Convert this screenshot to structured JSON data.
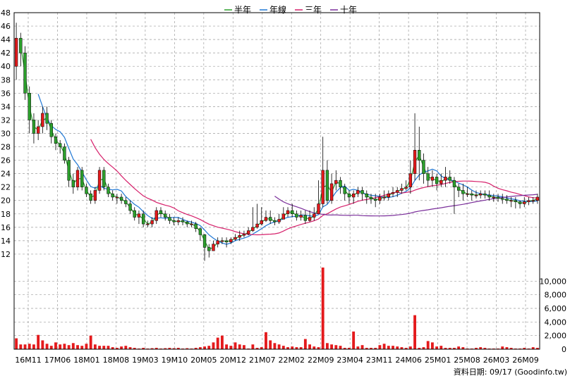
{
  "chart_data": {
    "type": "candlestick",
    "legend": [
      {
        "name": "半年",
        "color": "#2ca02c"
      },
      {
        "name": "年線",
        "color": "#1f77d4"
      },
      {
        "name": "三年",
        "color": "#d6206b"
      },
      {
        "name": "十年",
        "color": "#7a2e9a"
      }
    ],
    "colors": {
      "up": "#e41a1c",
      "down": "#2ca02c",
      "volume": "#e41a1c",
      "grid": "#9e9e9e"
    },
    "price_axis": {
      "min": 10,
      "max": 48,
      "ticks": [
        12,
        14,
        16,
        18,
        20,
        22,
        24,
        26,
        28,
        30,
        32,
        34,
        36,
        38,
        40,
        42,
        44,
        46,
        48
      ]
    },
    "volume_axis": {
      "min": 0,
      "max": 12000,
      "ticks": [
        0,
        2000,
        4000,
        6000,
        8000,
        10000
      ],
      "tick_labels": [
        "0",
        "2,000",
        "4,000",
        "6,000",
        "8,000",
        "10,000"
      ]
    },
    "x_tick_labels": [
      "16M11",
      "17M06",
      "18M01",
      "18M08",
      "19M03",
      "19M10",
      "20M05",
      "20M12",
      "21M07",
      "22M02",
      "22M09",
      "23M04",
      "23M11",
      "24M06",
      "25M01",
      "25M08",
      "26M03",
      "26M09"
    ],
    "n_periods": 120,
    "close": [
      44.2,
      42.0,
      36.0,
      32.0,
      30.0,
      31.0,
      33.0,
      31.5,
      29.5,
      28.5,
      28.0,
      26.0,
      23.0,
      22.0,
      24.5,
      22.0,
      21.0,
      20.0,
      21.5,
      24.5,
      22.0,
      21.0,
      20.5,
      20.5,
      20.0,
      19.5,
      18.5,
      17.5,
      18.0,
      16.5,
      16.5,
      17.0,
      18.5,
      18.0,
      17.5,
      17.0,
      16.8,
      17.0,
      16.8,
      16.5,
      16.5,
      15.8,
      14.9,
      13.0,
      12.5,
      13.5,
      14.0,
      14.0,
      13.8,
      14.2,
      14.5,
      14.8,
      15.0,
      15.5,
      16.0,
      16.5,
      17.0,
      17.5,
      17.0,
      16.8,
      17.2,
      18.0,
      18.5,
      18.0,
      17.5,
      17.8,
      17.0,
      17.5,
      18.0,
      19.5,
      24.5,
      20.0,
      22.5,
      23.0,
      22.0,
      21.0,
      20.5,
      21.0,
      21.5,
      21.0,
      20.5,
      20.2,
      20.0,
      20.5,
      20.5,
      21.0,
      21.2,
      21.5,
      21.8,
      22.0,
      24.0,
      27.5,
      26.0,
      24.0,
      23.0,
      23.5,
      22.5,
      23.0,
      23.5,
      23.0,
      22.0,
      21.5,
      21.0,
      21.0,
      20.8,
      20.8,
      21.0,
      20.8,
      20.5,
      20.5,
      20.3,
      20.2,
      20.0,
      20.0,
      19.8,
      19.5,
      19.8,
      20.0,
      20.0,
      20.5
    ],
    "open": [
      40.0,
      44.2,
      42.0,
      36.0,
      32.0,
      30.0,
      31.0,
      33.0,
      31.5,
      29.5,
      28.5,
      28.0,
      26.0,
      23.0,
      22.0,
      24.5,
      22.0,
      21.0,
      20.0,
      21.5,
      24.5,
      22.0,
      21.0,
      20.5,
      20.5,
      20.0,
      19.5,
      18.5,
      17.5,
      18.0,
      16.5,
      16.5,
      17.0,
      18.5,
      18.0,
      17.5,
      17.0,
      16.8,
      17.0,
      16.8,
      16.5,
      16.5,
      15.8,
      14.9,
      13.0,
      12.5,
      13.5,
      14.0,
      14.0,
      13.8,
      14.2,
      14.5,
      14.8,
      15.0,
      15.5,
      16.0,
      16.5,
      17.0,
      17.5,
      17.0,
      16.8,
      17.2,
      18.0,
      18.5,
      18.0,
      17.5,
      17.8,
      17.0,
      17.5,
      18.0,
      19.5,
      24.5,
      20.0,
      22.5,
      23.0,
      22.0,
      21.0,
      20.5,
      21.0,
      21.5,
      21.0,
      20.5,
      20.2,
      20.0,
      20.5,
      20.5,
      21.0,
      21.2,
      21.5,
      21.8,
      22.0,
      24.0,
      27.5,
      26.0,
      24.0,
      23.0,
      23.5,
      22.5,
      23.0,
      23.5,
      23.0,
      22.0,
      21.5,
      21.0,
      21.0,
      20.8,
      20.8,
      21.0,
      20.8,
      20.5,
      20.5,
      20.3,
      20.2,
      20.0,
      20.0,
      19.8,
      19.5,
      19.8,
      20.0,
      20.0
    ],
    "high": [
      46.5,
      45.0,
      43.0,
      37.0,
      33.0,
      32.0,
      34.0,
      34.0,
      32.0,
      30.0,
      29.0,
      28.5,
      26.5,
      24.0,
      25.0,
      25.0,
      22.5,
      21.5,
      22.0,
      25.0,
      25.0,
      22.5,
      21.5,
      21.0,
      21.0,
      20.5,
      20.0,
      19.0,
      18.5,
      18.5,
      17.0,
      17.5,
      19.0,
      19.0,
      18.5,
      18.0,
      17.5,
      17.5,
      17.5,
      17.0,
      17.0,
      16.8,
      16.0,
      15.0,
      13.5,
      14.0,
      14.5,
      14.5,
      14.5,
      14.5,
      15.0,
      15.5,
      15.5,
      16.0,
      19.0,
      19.5,
      19.0,
      18.5,
      18.5,
      17.5,
      18.0,
      19.0,
      19.0,
      19.5,
      18.5,
      18.5,
      18.5,
      18.5,
      19.0,
      23.0,
      29.5,
      26.0,
      24.0,
      24.5,
      23.5,
      22.5,
      21.5,
      21.5,
      22.0,
      22.0,
      21.5,
      21.0,
      21.0,
      21.0,
      21.5,
      21.5,
      22.0,
      22.0,
      22.5,
      23.0,
      26.0,
      33.0,
      31.0,
      27.0,
      25.0,
      24.5,
      24.0,
      24.0,
      25.0,
      24.5,
      23.5,
      22.5,
      22.5,
      22.0,
      21.5,
      21.5,
      21.5,
      21.5,
      21.5,
      21.0,
      21.0,
      21.0,
      20.8,
      20.5,
      20.5,
      20.0,
      20.5,
      20.5,
      20.5,
      21.0
    ],
    "low": [
      38.0,
      40.0,
      35.0,
      30.0,
      28.5,
      29.0,
      30.0,
      30.5,
      28.5,
      27.5,
      27.0,
      25.5,
      22.0,
      21.0,
      21.5,
      21.5,
      20.5,
      19.5,
      19.5,
      21.0,
      21.5,
      20.5,
      20.0,
      19.5,
      19.5,
      19.0,
      18.0,
      17.0,
      16.5,
      16.0,
      16.0,
      16.0,
      16.5,
      17.5,
      17.0,
      16.5,
      16.3,
      16.3,
      16.3,
      16.0,
      16.0,
      15.3,
      14.0,
      11.0,
      11.5,
      12.5,
      13.0,
      13.5,
      13.0,
      13.5,
      14.0,
      14.0,
      14.5,
      14.8,
      15.3,
      15.8,
      16.3,
      16.8,
      16.5,
      16.3,
      16.5,
      17.5,
      17.5,
      17.5,
      17.0,
      17.0,
      16.5,
      16.8,
      17.0,
      18.0,
      19.0,
      19.5,
      19.5,
      21.5,
      21.0,
      20.0,
      19.5,
      19.5,
      20.5,
      20.0,
      19.5,
      19.5,
      19.0,
      19.5,
      20.0,
      20.0,
      20.5,
      20.5,
      21.0,
      21.5,
      21.0,
      23.0,
      23.0,
      22.5,
      22.0,
      22.0,
      21.5,
      22.0,
      22.0,
      22.5,
      18.0,
      20.5,
      20.0,
      20.5,
      20.0,
      20.3,
      20.3,
      20.3,
      20.0,
      19.8,
      19.8,
      19.5,
      19.5,
      19.0,
      18.8,
      18.8,
      19.0,
      19.3,
      19.5,
      19.5
    ],
    "volume": [
      1600,
      700,
      700,
      800,
      700,
      2100,
      1300,
      800,
      500,
      1000,
      700,
      800,
      600,
      900,
      600,
      500,
      800,
      2000,
      700,
      500,
      500,
      500,
      300,
      200,
      400,
      500,
      300,
      200,
      100,
      200,
      100,
      150,
      200,
      100,
      150,
      200,
      150,
      200,
      100,
      150,
      100,
      200,
      300,
      400,
      500,
      1000,
      1700,
      2000,
      700,
      500,
      1000,
      700,
      600,
      100,
      700,
      200,
      300,
      2500,
      1300,
      900,
      700,
      500,
      300,
      400,
      300,
      300,
      1500,
      700,
      400,
      300,
      2500,
      900,
      700,
      600,
      500,
      200,
      200,
      2600,
      400,
      600,
      200,
      200,
      200,
      600,
      800,
      500,
      500,
      400,
      300,
      200,
      400,
      200,
      200,
      300,
      1200,
      1000,
      400,
      500,
      200,
      200,
      200,
      400,
      300,
      100,
      100,
      200,
      300,
      200,
      100,
      100,
      100,
      400,
      300,
      200,
      100,
      100,
      200,
      100,
      300,
      200
    ],
    "volume_spikes": {
      "70": 12000,
      "91": 5000
    }
  },
  "credit": "資料日期: 09/17  (Goodinfo.tw)"
}
